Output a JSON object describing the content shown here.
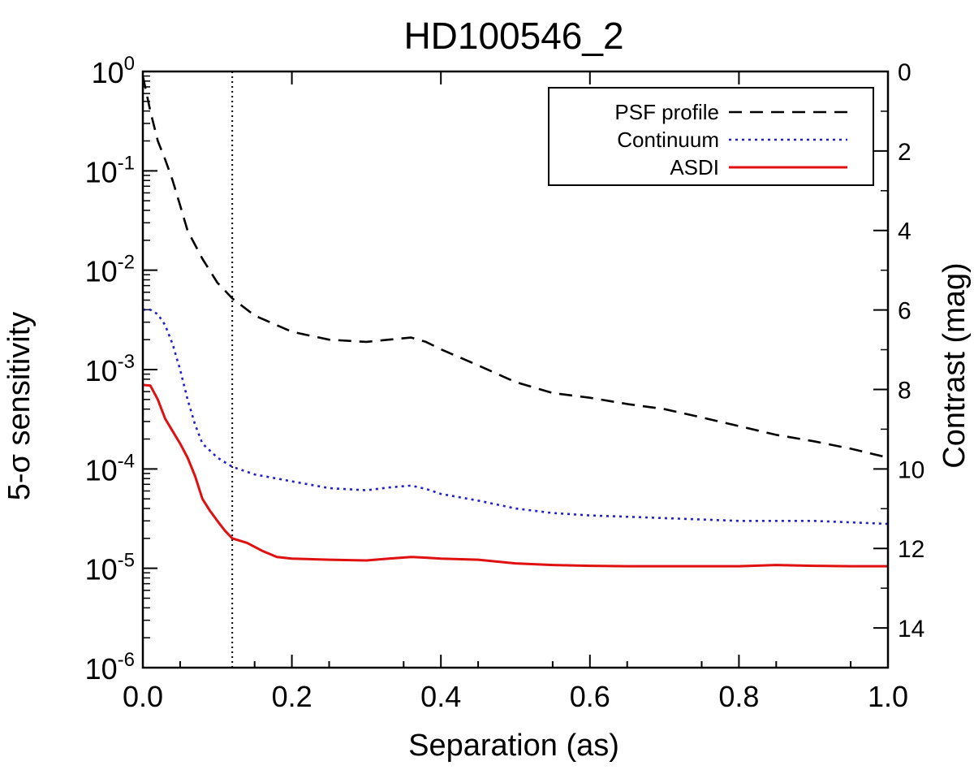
{
  "chart_data": {
    "type": "line",
    "title": "HD100546_2",
    "xlabel": "Separation (as)",
    "ylabel": "5-σ sensitivity",
    "y2label": "Contrast (mag)",
    "xlim": [
      0.0,
      1.0
    ],
    "ylim": [
      1e-06,
      1.0
    ],
    "y2lim": [
      0,
      15
    ],
    "yscale": "log",
    "x_ticks": [
      "0.0",
      "0.2",
      "0.4",
      "0.6",
      "0.8",
      "1.0"
    ],
    "y_ticks": [
      {
        "base": "10",
        "exp": "0",
        "value": 1
      },
      {
        "base": "10",
        "exp": "-1",
        "value": 0.1
      },
      {
        "base": "10",
        "exp": "-2",
        "value": 0.01
      },
      {
        "base": "10",
        "exp": "-3",
        "value": 0.001
      },
      {
        "base": "10",
        "exp": "-4",
        "value": 0.0001
      },
      {
        "base": "10",
        "exp": "-5",
        "value": 1e-05
      },
      {
        "base": "10",
        "exp": "-6",
        "value": 1e-06
      }
    ],
    "y2_ticks": [
      "0",
      "2",
      "4",
      "6",
      "8",
      "10",
      "12",
      "14"
    ],
    "vline_x": 0.12,
    "legend": {
      "position": "top-right"
    },
    "series": [
      {
        "name": "PSF profile",
        "color": "#000000",
        "style": "dashed",
        "x": [
          0.0,
          0.01,
          0.02,
          0.03,
          0.04,
          0.05,
          0.06,
          0.08,
          0.1,
          0.12,
          0.15,
          0.2,
          0.25,
          0.3,
          0.33,
          0.36,
          0.38,
          0.4,
          0.45,
          0.5,
          0.55,
          0.6,
          0.65,
          0.7,
          0.75,
          0.8,
          0.85,
          0.9,
          0.95,
          1.0
        ],
        "y": [
          0.9,
          0.4,
          0.2,
          0.13,
          0.08,
          0.045,
          0.025,
          0.013,
          0.0075,
          0.0052,
          0.0035,
          0.0024,
          0.002,
          0.0019,
          0.002,
          0.0021,
          0.0019,
          0.0016,
          0.0011,
          0.00075,
          0.00058,
          0.00052,
          0.00045,
          0.0004,
          0.00033,
          0.00027,
          0.00022,
          0.00019,
          0.00016,
          0.00013
        ]
      },
      {
        "name": "Continuum",
        "color": "#1f1fd0",
        "style": "dotted",
        "x": [
          0.0,
          0.01,
          0.02,
          0.03,
          0.04,
          0.05,
          0.06,
          0.07,
          0.08,
          0.1,
          0.12,
          0.15,
          0.2,
          0.25,
          0.3,
          0.33,
          0.36,
          0.38,
          0.4,
          0.45,
          0.5,
          0.55,
          0.6,
          0.65,
          0.7,
          0.75,
          0.8,
          0.85,
          0.9,
          0.95,
          1.0
        ],
        "y": [
          0.004,
          0.004,
          0.0036,
          0.0028,
          0.0018,
          0.001,
          0.0005,
          0.00028,
          0.00018,
          0.00013,
          0.000105,
          8.8e-05,
          7.5e-05,
          6.4e-05,
          6.1e-05,
          6.5e-05,
          6.8e-05,
          6.3e-05,
          5.6e-05,
          4.8e-05,
          4e-05,
          3.6e-05,
          3.4e-05,
          3.3e-05,
          3.2e-05,
          3.1e-05,
          3e-05,
          3e-05,
          3e-05,
          2.9e-05,
          2.8e-05
        ]
      },
      {
        "name": "ASDI",
        "color": "#e01010",
        "style": "solid",
        "x": [
          0.0,
          0.01,
          0.02,
          0.03,
          0.04,
          0.05,
          0.06,
          0.07,
          0.08,
          0.09,
          0.1,
          0.11,
          0.12,
          0.14,
          0.16,
          0.18,
          0.2,
          0.25,
          0.3,
          0.33,
          0.36,
          0.38,
          0.4,
          0.45,
          0.5,
          0.55,
          0.6,
          0.65,
          0.7,
          0.75,
          0.8,
          0.85,
          0.9,
          0.95,
          1.0
        ],
        "y": [
          0.0007,
          0.00069,
          0.0005,
          0.00032,
          0.00024,
          0.00018,
          0.00013,
          8.5e-05,
          5e-05,
          3.8e-05,
          3e-05,
          2.4e-05,
          2e-05,
          1.8e-05,
          1.5e-05,
          1.3e-05,
          1.25e-05,
          1.22e-05,
          1.2e-05,
          1.25e-05,
          1.3e-05,
          1.28e-05,
          1.25e-05,
          1.22e-05,
          1.12e-05,
          1.08e-05,
          1.06e-05,
          1.05e-05,
          1.05e-05,
          1.05e-05,
          1.05e-05,
          1.08e-05,
          1.06e-05,
          1.05e-05,
          1.05e-05
        ]
      }
    ]
  }
}
